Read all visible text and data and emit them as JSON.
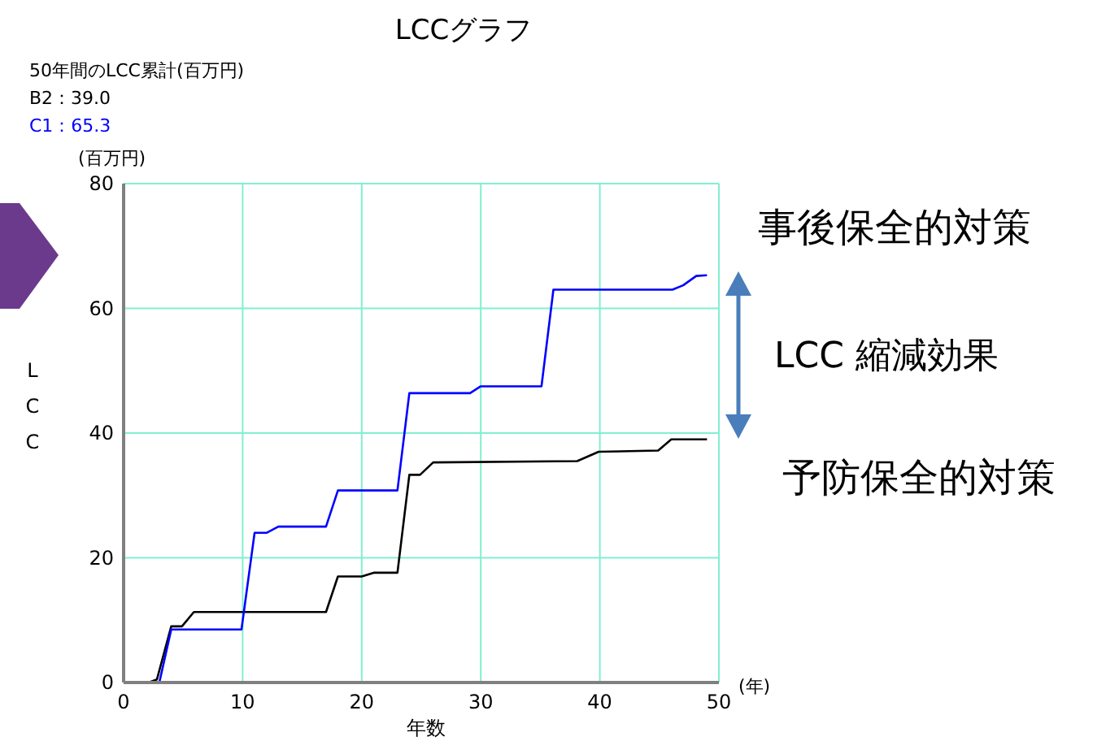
{
  "chart_data": {
    "type": "line",
    "title": "LCCグラフ",
    "xlabel": "年数",
    "ylabel": "LCC",
    "annotations": [
      "50年間のLCC累計(百万円)",
      "(百万円)",
      "(年)",
      "事後保全的対策",
      "LCC 縮減効果",
      "予防保全的対策"
    ],
    "xlim": [
      0,
      50
    ],
    "xticks": [
      0,
      10,
      20,
      30,
      40,
      50
    ],
    "ylim": [
      0,
      80
    ],
    "yticks": [
      0,
      20,
      40,
      60,
      80
    ],
    "grid": true,
    "marker": "none",
    "line_style": "solid",
    "series": [
      {
        "name": "B2：39.0",
        "color": "#000000",
        "x": [
          0,
          2.1,
          2.8,
          4,
          4.9,
          5.9,
          17,
          18,
          20,
          21,
          23,
          24,
          24.9,
          26,
          38.1,
          39.9,
          44.9,
          46,
          49
        ],
        "values": [
          0,
          0,
          0.5,
          9,
          9,
          11.3,
          11.3,
          17,
          17,
          17.6,
          17.6,
          33.3,
          33.3,
          35.3,
          35.5,
          37,
          37.2,
          39,
          39
        ]
      },
      {
        "name": "C1：65.3",
        "color": "#0000ff",
        "x": [
          0,
          3,
          4,
          9.9,
          11,
          12,
          13,
          17,
          18,
          23,
          24,
          29.1,
          30,
          35.1,
          36.1,
          46.1,
          47,
          48.1,
          49
        ],
        "values": [
          0,
          0,
          8.5,
          8.5,
          24,
          24,
          25,
          25,
          30.8,
          30.8,
          46.4,
          46.4,
          47.5,
          47.5,
          63,
          63,
          63.7,
          65.2,
          65.3
        ]
      }
    ]
  }
}
